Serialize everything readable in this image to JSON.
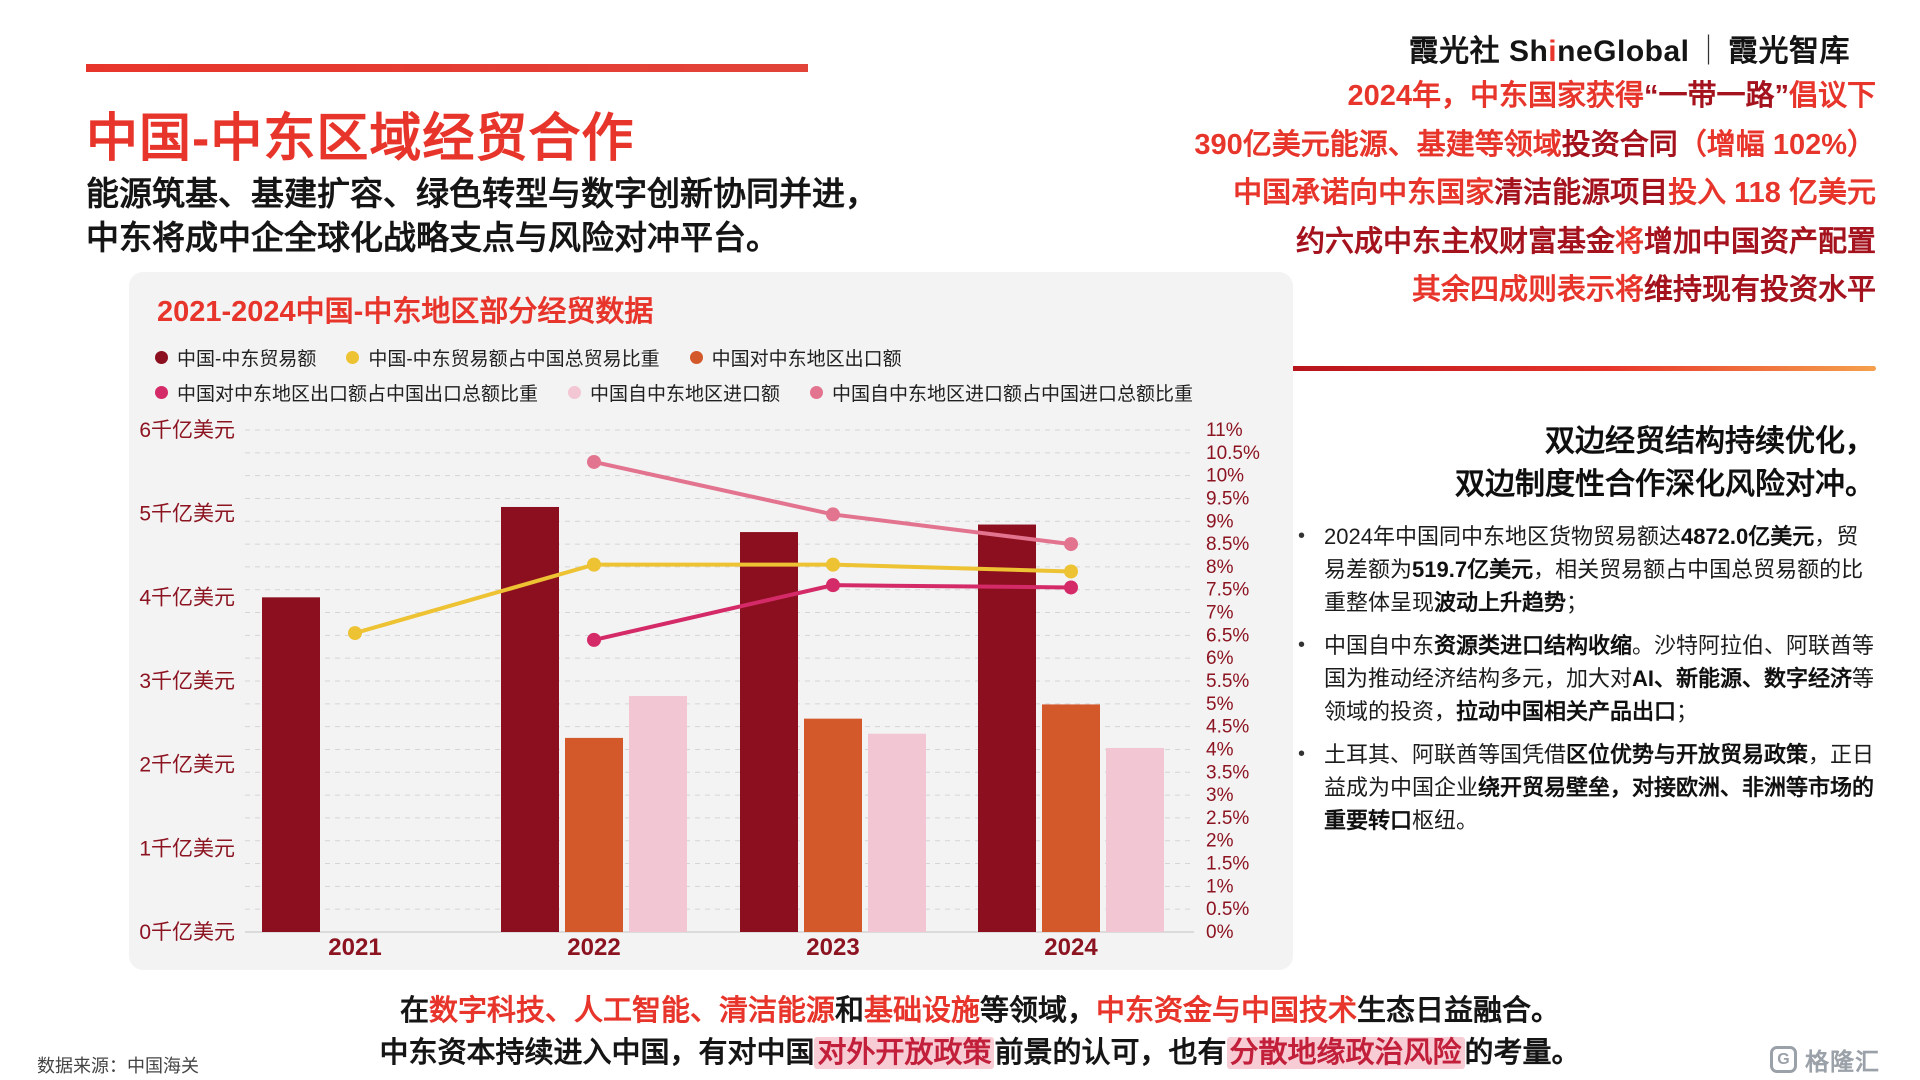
{
  "brand": {
    "prefix": "霞光社 ",
    "sh": "Sh",
    "i": "i",
    "rest": "neGlobal",
    "sep": "｜",
    "suffix": "霞光智库"
  },
  "hero": {
    "title": "中国-中东区域经贸合作",
    "subtitle_line1": "能源筑基、基建扩容、绿色转型与数字创新协同并进，",
    "subtitle_line2": "中东将成中企全球化战略支点与风险对冲平台。"
  },
  "headline_block": {
    "lines": [
      {
        "segments": [
          {
            "t": "2024年，中东国家获得",
            "s": "r"
          },
          {
            "t": "“一带一路”",
            "s": "d"
          },
          {
            "t": "倡议下",
            "s": "r"
          }
        ]
      },
      {
        "segments": [
          {
            "t": "390亿美元能源、基建等领域",
            "s": "r"
          },
          {
            "t": "投资合同",
            "s": "d"
          },
          {
            "t": "（增幅 102%）",
            "s": "r"
          }
        ]
      },
      {
        "segments": [
          {
            "t": "中国承诺向中东国家",
            "s": "r"
          },
          {
            "t": "清洁能源项目",
            "s": "d"
          },
          {
            "t": "投入 118 亿美元",
            "s": "r"
          }
        ]
      },
      {
        "segments": [
          {
            "t": "约六成中东主权财富基金",
            "s": "d"
          },
          {
            "t": "将",
            "s": "r"
          },
          {
            "t": "增加中国资产配置",
            "s": "d"
          }
        ]
      },
      {
        "segments": [
          {
            "t": "其余四成则表示将",
            "s": "r"
          },
          {
            "t": "维持现有投资水平",
            "s": "d"
          }
        ]
      }
    ]
  },
  "insights": {
    "heading_line1": "双边经贸结构持续优化，",
    "heading_line2": "双边制度性合作深化风险对冲。",
    "bullet_marker": "•",
    "bullets": [
      {
        "segments": [
          {
            "t": "2024年中国同中东地区货物贸易额达",
            "s": "n"
          },
          {
            "t": "4872.0亿美元",
            "s": "b"
          },
          {
            "t": "，贸易差额为",
            "s": "n"
          },
          {
            "t": "519.7亿美元",
            "s": "b"
          },
          {
            "t": "，相关贸易额占中国总贸易额的比重整体呈现",
            "s": "n"
          },
          {
            "t": "波动上升趋势",
            "s": "b"
          },
          {
            "t": "；",
            "s": "n"
          }
        ]
      },
      {
        "segments": [
          {
            "t": "中国自中东",
            "s": "n"
          },
          {
            "t": "资源类进口结构收缩",
            "s": "b"
          },
          {
            "t": "。沙特阿拉伯、阿联酋等国为推动经济结构多元，加大对",
            "s": "n"
          },
          {
            "t": "AI、新能源、数字经济",
            "s": "b"
          },
          {
            "t": "等领域的投资，",
            "s": "n"
          },
          {
            "t": "拉动中国相关产品出口",
            "s": "b"
          },
          {
            "t": "；",
            "s": "n"
          }
        ]
      },
      {
        "segments": [
          {
            "t": "土耳其、阿联酋等国凭借",
            "s": "n"
          },
          {
            "t": "区位优势与开放贸易政策",
            "s": "b"
          },
          {
            "t": "，正日益成为中国企业",
            "s": "n"
          },
          {
            "t": "绕开贸易壁垒",
            "s": "b"
          },
          {
            "t": "，对接欧洲、非洲等市场的重要转口",
            "s": "b"
          },
          {
            "t": "枢纽。",
            "s": "n"
          }
        ]
      }
    ]
  },
  "chart_data": {
    "type": "bar+line",
    "title": "2021-2024中国-中东地区部分经贸数据",
    "categories": [
      "2021",
      "2022",
      "2023",
      "2024"
    ],
    "axis_color": "#8c1320",
    "grid": "dashed horizontal gridlines at every right-axis tick",
    "legend_position": "top-left, two rows",
    "left_axis": {
      "unit": "千亿美元",
      "min": 0,
      "max": 6,
      "tick_labels": [
        "0千亿美元",
        "1千亿美元",
        "2千亿美元",
        "3千亿美元",
        "4千亿美元",
        "5千亿美元",
        "6千亿美元"
      ]
    },
    "right_axis": {
      "unit": "%",
      "min": 0,
      "max": 11,
      "step": 0.5,
      "tick_labels": [
        "0%",
        "0.5%",
        "1%",
        "1.5%",
        "2%",
        "2.5%",
        "3%",
        "3.5%",
        "4%",
        "4.5%",
        "5%",
        "5.5%",
        "6%",
        "6.5%",
        "7%",
        "7.5%",
        "8%",
        "8.5%",
        "9%",
        "9.5%",
        "10%",
        "10.5%",
        "11%"
      ]
    },
    "bar_series": [
      {
        "name": "中国-中东贸易额",
        "color": "#8c0f1f",
        "axis": "left",
        "values": [
          4.0,
          5.08,
          4.78,
          4.87
        ]
      },
      {
        "name": "中国对中东地区出口额",
        "color": "#d4592a",
        "axis": "left",
        "values": [
          null,
          2.32,
          2.55,
          2.72
        ]
      },
      {
        "name": "中国自中东地区进口额",
        "color": "#f3c6d4",
        "axis": "left",
        "values": [
          null,
          2.82,
          2.37,
          2.2
        ]
      }
    ],
    "line_series": [
      {
        "name": "中国-中东贸易额占中国总贸易比重",
        "color": "#edc233",
        "axis": "right",
        "values": [
          6.55,
          8.05,
          8.05,
          7.9
        ]
      },
      {
        "name": "中国对中东地区出口额占中国出口总额比重",
        "color": "#d42a68",
        "axis": "right",
        "values": [
          null,
          6.4,
          7.6,
          7.55
        ]
      },
      {
        "name": "中国自中东地区进口额占中国进口总额比重",
        "color": "#e3748f",
        "axis": "right",
        "values": [
          null,
          10.3,
          9.15,
          8.5
        ]
      }
    ],
    "legend": {
      "row1": [
        {
          "label": "中国-中东贸易额",
          "color": "#8c0f1f"
        },
        {
          "label": "中国-中东贸易额占中国总贸易比重",
          "color": "#edc233"
        },
        {
          "label": "中国对中东地区出口额",
          "color": "#d4592a"
        }
      ],
      "row2": [
        {
          "label": "中国对中东地区出口额占中国出口总额比重",
          "color": "#d42a68"
        },
        {
          "label": "中国自中东地区进口额",
          "color": "#f3c6d4"
        },
        {
          "label": "中国自中东地区进口额占中国进口总额比重",
          "color": "#e3748f"
        }
      ]
    }
  },
  "footer": {
    "line1_segments": [
      {
        "t": "在",
        "s": "k"
      },
      {
        "t": "数字科技、人工智能、清洁能源",
        "s": "r"
      },
      {
        "t": "和",
        "s": "k"
      },
      {
        "t": "基础设施",
        "s": "r"
      },
      {
        "t": "等领域，",
        "s": "k"
      },
      {
        "t": "中东资金与中国技术",
        "s": "r"
      },
      {
        "t": "生态日益融合。",
        "s": "k"
      }
    ],
    "line2_segments": [
      {
        "t": "中东资本持续进入中国，有对中国",
        "s": "k"
      },
      {
        "t": "对外开放政策",
        "s": "hl"
      },
      {
        "t": "前景的认可，也有",
        "s": "k"
      },
      {
        "t": "分散地缘政治风险",
        "s": "hl"
      },
      {
        "t": "的考量。",
        "s": "k"
      }
    ],
    "source": "数据来源：中国海关",
    "logo_text": "格隆汇",
    "logo_letter": "G"
  },
  "colors": {
    "accent_red": "#e8352b",
    "dark_red": "#a4121d",
    "panel_bg": "#f3f3f4",
    "axis_text": "#8c1320",
    "highlight_bg": "#f8ccd5"
  }
}
